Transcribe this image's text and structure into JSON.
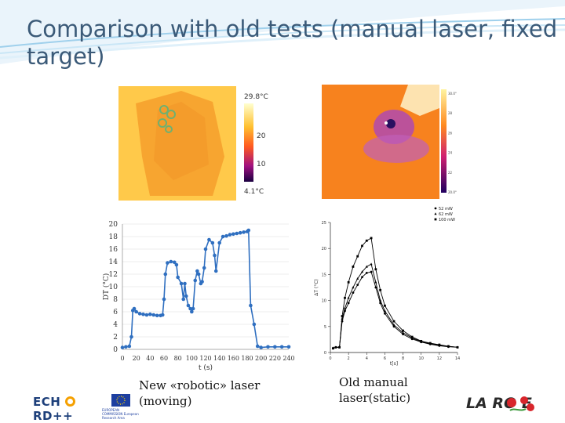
{
  "slide": {
    "title": "Comparison with old tests (manual laser, fixed target)",
    "colors": {
      "title": "#3b5a78",
      "series_new": "#2f6fc0",
      "series_old": "#000000"
    }
  },
  "thermal_left": {
    "max_label": "29.8°C",
    "mid_label": "20",
    "low_label": "10",
    "min_label": "4.1°C"
  },
  "thermal_right": {
    "scale_labels": [
      "30.0°C",
      "28",
      "26",
      "24",
      "22",
      "20.0°C"
    ]
  },
  "chart_data": [
    {
      "type": "line",
      "xlabel": "t (s)",
      "ylabel": "DT (°C)",
      "xlim": [
        0,
        240
      ],
      "ylim": [
        0,
        20
      ],
      "xticks": [
        0,
        20,
        40,
        60,
        80,
        100,
        120,
        140,
        160,
        180,
        200,
        220,
        240
      ],
      "yticks": [
        0,
        2,
        4,
        6,
        8,
        10,
        12,
        14,
        16,
        18,
        20
      ],
      "x": [
        0,
        5,
        10,
        13,
        15,
        17,
        20,
        25,
        30,
        35,
        40,
        45,
        50,
        55,
        58,
        60,
        62,
        65,
        70,
        75,
        78,
        80,
        85,
        88,
        90,
        92,
        95,
        98,
        100,
        102,
        105,
        108,
        110,
        113,
        115,
        118,
        120,
        125,
        130,
        133,
        135,
        140,
        145,
        150,
        155,
        160,
        165,
        170,
        175,
        180,
        182,
        185,
        190,
        195,
        200,
        210,
        220,
        230,
        240
      ],
      "y": [
        0.3,
        0.4,
        0.5,
        2.0,
        6.2,
        6.5,
        6.0,
        5.7,
        5.6,
        5.5,
        5.6,
        5.5,
        5.4,
        5.4,
        5.5,
        8.0,
        12.0,
        13.8,
        14.0,
        13.9,
        13.5,
        11.5,
        10.5,
        8.0,
        10.5,
        8.5,
        7.0,
        6.5,
        6.0,
        6.5,
        11.0,
        12.5,
        12.0,
        10.5,
        10.8,
        13.0,
        16.0,
        17.5,
        17.0,
        15.0,
        12.5,
        17.0,
        18.0,
        18.1,
        18.3,
        18.4,
        18.5,
        18.6,
        18.7,
        18.8,
        19.0,
        7.0,
        4.0,
        0.5,
        0.3,
        0.4,
        0.4,
        0.4,
        0.4
      ]
    },
    {
      "type": "line",
      "xlabel": "t[s]",
      "ylabel": "ΔT (°C)",
      "xlim": [
        0,
        14
      ],
      "ylim": [
        0,
        25
      ],
      "xticks": [
        0,
        2,
        4,
        6,
        8,
        10,
        12,
        14
      ],
      "yticks": [
        0,
        5,
        10,
        15,
        20,
        25
      ],
      "legend_position": "top-right",
      "x": [
        0.3,
        0.6,
        1.0,
        1.3,
        1.6,
        2.0,
        2.5,
        3.0,
        3.5,
        4.0,
        4.5,
        5.0,
        5.5,
        6.0,
        7.0,
        8.0,
        9.0,
        10.0,
        11.0,
        12.0,
        13.0,
        14.0
      ],
      "series": [
        {
          "name": "52 mW",
          "marker": "circle",
          "values": [
            0.8,
            1.0,
            1.0,
            6.0,
            8.0,
            9.5,
            11.5,
            13.0,
            14.5,
            15.3,
            15.5,
            12.5,
            9.5,
            7.5,
            5.0,
            3.5,
            2.6,
            2.0,
            1.6,
            1.3,
            1.1,
            1.0
          ]
        },
        {
          "name": "62 mW",
          "marker": "triangle",
          "values": [
            0.9,
            1.0,
            1.0,
            6.5,
            8.5,
            10.5,
            12.5,
            14.2,
            15.5,
            16.5,
            17.0,
            13.5,
            10.0,
            8.0,
            5.3,
            3.8,
            2.8,
            2.1,
            1.7,
            1.4,
            1.2,
            1.0
          ]
        },
        {
          "name": "100 mW",
          "marker": "square",
          "values": [
            0.8,
            1.0,
            1.0,
            7.0,
            10.5,
            13.5,
            16.5,
            18.5,
            20.5,
            21.5,
            22.0,
            16.0,
            12.0,
            9.0,
            6.0,
            4.2,
            3.0,
            2.2,
            1.8,
            1.5,
            1.2,
            1.0
          ]
        }
      ]
    }
  ],
  "captions": {
    "left": "New «robotic» laser (moving)",
    "right": "Old manual laser(static)"
  },
  "logos": {
    "echord": "ECH RD++",
    "ec_text": "EUROPEAN COMMISSION European Research Area",
    "larose": "LA RO E"
  }
}
